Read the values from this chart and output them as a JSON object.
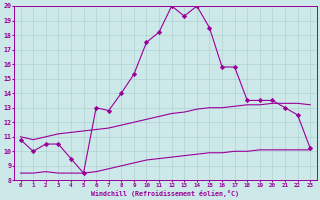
{
  "xlabel": "Windchill (Refroidissement éolien,°C)",
  "bg_color": "#cce8e8",
  "grid_color": "#aacccc",
  "line_color": "#990099",
  "x": [
    0,
    1,
    2,
    3,
    4,
    5,
    6,
    7,
    8,
    9,
    10,
    11,
    12,
    13,
    14,
    15,
    16,
    17,
    18,
    19,
    20,
    21,
    22,
    23
  ],
  "y_upper": [
    10.8,
    10.0,
    10.5,
    10.5,
    9.5,
    8.5,
    13.0,
    12.8,
    14.0,
    15.3,
    17.5,
    18.2,
    20.0,
    19.3,
    20.0,
    18.5,
    15.8,
    15.8,
    13.5,
    13.5,
    13.5,
    13.0,
    12.5,
    10.2
  ],
  "y_mid": [
    11.0,
    10.8,
    11.0,
    11.2,
    11.3,
    11.4,
    11.5,
    11.6,
    11.8,
    12.0,
    12.2,
    12.4,
    12.6,
    12.7,
    12.9,
    13.0,
    13.0,
    13.1,
    13.2,
    13.2,
    13.3,
    13.3,
    13.3,
    13.2
  ],
  "y_lower": [
    8.5,
    8.5,
    8.6,
    8.5,
    8.5,
    8.5,
    8.6,
    8.8,
    9.0,
    9.2,
    9.4,
    9.5,
    9.6,
    9.7,
    9.8,
    9.9,
    9.9,
    10.0,
    10.0,
    10.1,
    10.1,
    10.1,
    10.1,
    10.1
  ],
  "ylim": [
    8,
    20
  ],
  "xlim": [
    -0.5,
    23.5
  ],
  "yticks": [
    8,
    9,
    10,
    11,
    12,
    13,
    14,
    15,
    16,
    17,
    18,
    19,
    20
  ],
  "xticks": [
    0,
    1,
    2,
    3,
    4,
    5,
    6,
    7,
    8,
    9,
    10,
    11,
    12,
    13,
    14,
    15,
    16,
    17,
    18,
    19,
    20,
    21,
    22,
    23
  ],
  "marker": "D",
  "markersize": 2.2,
  "linewidth": 0.8
}
